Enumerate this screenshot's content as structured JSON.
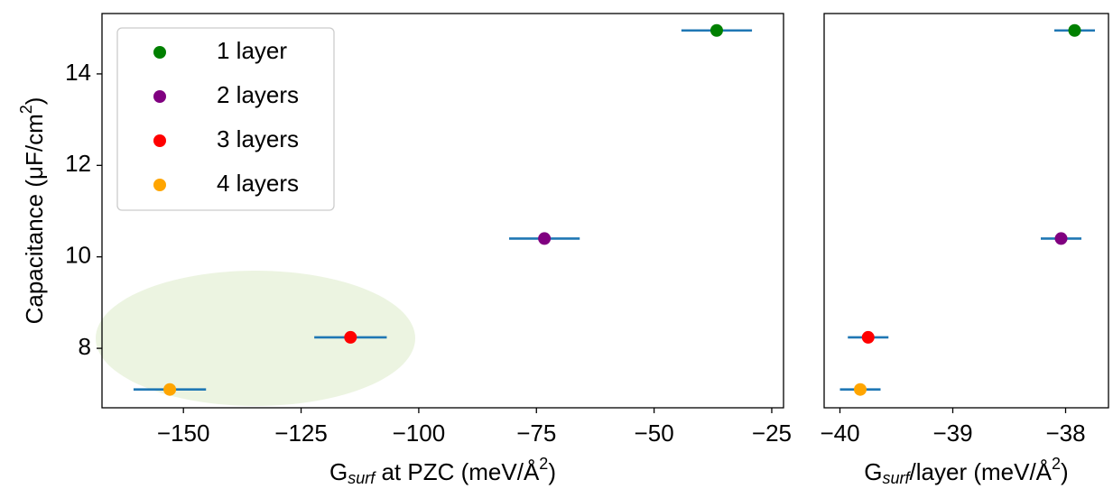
{
  "chart_data": [
    {
      "type": "scatter",
      "xlabel_parts": [
        "G",
        "surf",
        " at PZC (meV/Å",
        "2",
        ")"
      ],
      "ylabel_parts": [
        "Capacitance (μF/cm",
        "2",
        ")"
      ],
      "xlim": [
        -167.3,
        -22.5
      ],
      "ylim": [
        6.7,
        15.32
      ],
      "xticks": [
        {
          "value": -150,
          "label": "−150"
        },
        {
          "value": -125,
          "label": "−125"
        },
        {
          "value": -100,
          "label": "−100"
        },
        {
          "value": -75,
          "label": "−75"
        },
        {
          "value": -50,
          "label": "−50"
        },
        {
          "value": -25,
          "label": "−25"
        }
      ],
      "yticks": [
        8,
        10,
        12,
        14
      ],
      "legend": "upper left",
      "errorbar_color": "#1f77b4",
      "series": [
        {
          "name": "1 layer",
          "color": "#008000",
          "x": [
            -36.7
          ],
          "values": [
            14.95
          ],
          "xerr": [
            7.5
          ]
        },
        {
          "name": "2 layers",
          "color": "#800080",
          "x": [
            -73.3
          ],
          "values": [
            10.4
          ],
          "xerr": [
            7.5
          ]
        },
        {
          "name": "3 layers",
          "color": "#ff0000",
          "x": [
            -114.5
          ],
          "values": [
            8.24
          ],
          "xerr": [
            7.7
          ]
        },
        {
          "name": "4 layers",
          "color": "#ffa500",
          "x": [
            -152.9
          ],
          "values": [
            7.1
          ],
          "xerr": [
            7.7
          ]
        }
      ]
    },
    {
      "type": "scatter",
      "xlabel_parts": [
        "G",
        "surf",
        "/layer (meV/Å",
        "2",
        ")"
      ],
      "xlim": [
        -40.14,
        -37.62
      ],
      "ylim": [
        6.7,
        15.32
      ],
      "xticks": [
        {
          "value": -40,
          "label": "−40"
        },
        {
          "value": -39,
          "label": "−39"
        },
        {
          "value": -38,
          "label": "−38"
        }
      ],
      "errorbar_color": "#1f77b4",
      "series": [
        {
          "name": "1 layer",
          "color": "#008000",
          "x": [
            -37.92
          ],
          "values": [
            14.95
          ],
          "xerr": [
            0.18
          ]
        },
        {
          "name": "2 layers",
          "color": "#800080",
          "x": [
            -38.04
          ],
          "values": [
            10.4
          ],
          "xerr": [
            0.18
          ]
        },
        {
          "name": "3 layers",
          "color": "#ff0000",
          "x": [
            -39.75
          ],
          "values": [
            8.24
          ],
          "xerr": [
            0.18
          ]
        },
        {
          "name": "4 layers",
          "color": "#ffa500",
          "x": [
            -39.82
          ],
          "values": [
            7.1
          ],
          "xerr": [
            0.18
          ]
        }
      ]
    }
  ]
}
